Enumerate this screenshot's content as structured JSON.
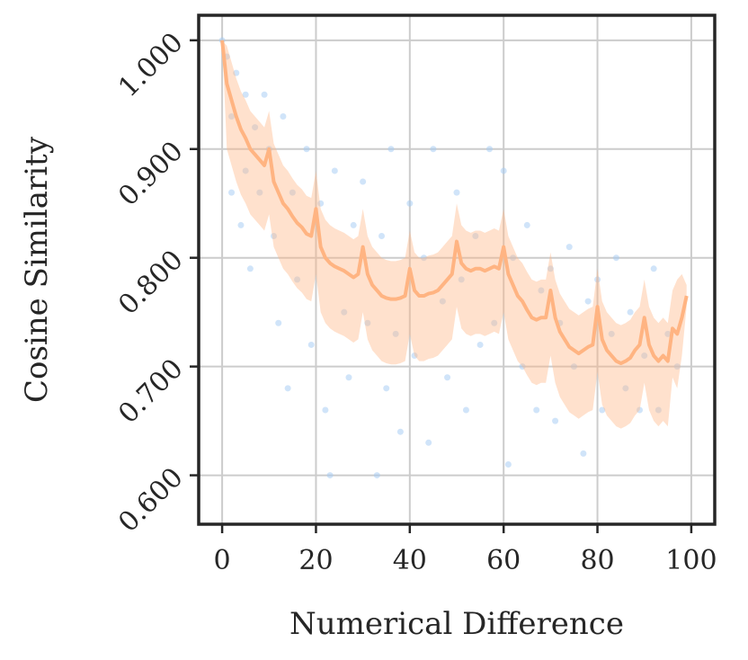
{
  "chart_data": {
    "type": "scatter",
    "xlabel": "Numerical Difference",
    "ylabel": "Cosine Similarity",
    "xlim": [
      -5,
      105
    ],
    "ylim": [
      0.555,
      1.023
    ],
    "xticks": [
      0,
      20,
      40,
      60,
      80,
      100
    ],
    "yticks": [
      {
        "value": 0.6,
        "label": "0.600"
      },
      {
        "value": 0.7,
        "label": "0.700"
      },
      {
        "value": 0.8,
        "label": "0.800"
      },
      {
        "value": 0.9,
        "label": "0.900"
      },
      {
        "value": 1.0,
        "label": "1.000"
      }
    ],
    "grid": true,
    "points": {
      "color": "#a1c9f4",
      "x": [
        0,
        1,
        2,
        2,
        3,
        4,
        5,
        5,
        6,
        7,
        8,
        9,
        10,
        11,
        12,
        13,
        14,
        15,
        16,
        18,
        19,
        21,
        22,
        23,
        24,
        26,
        27,
        28,
        30,
        31,
        33,
        34,
        35,
        36,
        37,
        38,
        40,
        41,
        43,
        44,
        45,
        47,
        48,
        50,
        51,
        52,
        54,
        55,
        57,
        58,
        60,
        61,
        62,
        64,
        65,
        67,
        68,
        70,
        71,
        72,
        74,
        75,
        77,
        78,
        80,
        81,
        83,
        84,
        86,
        87,
        89,
        90,
        92,
        93,
        95,
        97
      ],
      "y": [
        1.0,
        0.985,
        0.93,
        0.86,
        0.97,
        0.83,
        0.95,
        0.88,
        0.79,
        0.92,
        0.86,
        0.95,
        0.9,
        0.82,
        0.74,
        0.93,
        0.68,
        0.86,
        0.78,
        0.9,
        0.72,
        0.85,
        0.66,
        0.6,
        0.88,
        0.75,
        0.69,
        0.83,
        0.87,
        0.74,
        0.6,
        0.82,
        0.68,
        0.9,
        0.73,
        0.64,
        0.85,
        0.71,
        0.8,
        0.63,
        0.9,
        0.76,
        0.69,
        0.86,
        0.78,
        0.66,
        0.82,
        0.72,
        0.9,
        0.74,
        0.88,
        0.61,
        0.8,
        0.7,
        0.83,
        0.66,
        0.77,
        0.79,
        0.65,
        0.74,
        0.81,
        0.7,
        0.62,
        0.76,
        0.78,
        0.66,
        0.73,
        0.8,
        0.68,
        0.75,
        0.66,
        0.71,
        0.79,
        0.66,
        0.73,
        0.7
      ]
    },
    "x": [
      0,
      1,
      2,
      3,
      4,
      5,
      6,
      7,
      8,
      9,
      10,
      11,
      12,
      13,
      14,
      15,
      16,
      17,
      18,
      19,
      20,
      21,
      22,
      23,
      24,
      25,
      26,
      27,
      28,
      29,
      30,
      31,
      32,
      33,
      34,
      35,
      36,
      37,
      38,
      39,
      40,
      41,
      42,
      43,
      44,
      45,
      46,
      47,
      48,
      49,
      50,
      51,
      52,
      53,
      54,
      55,
      56,
      57,
      58,
      59,
      60,
      61,
      62,
      63,
      64,
      65,
      66,
      67,
      68,
      69,
      70,
      71,
      72,
      73,
      74,
      75,
      76,
      77,
      78,
      79,
      80,
      81,
      82,
      83,
      84,
      85,
      86,
      87,
      88,
      89,
      90,
      91,
      92,
      93,
      94,
      95,
      96,
      97,
      98,
      99
    ],
    "line": {
      "color": "#ffb482",
      "y": [
        1.0,
        0.96,
        0.945,
        0.93,
        0.918,
        0.91,
        0.9,
        0.895,
        0.89,
        0.885,
        0.9,
        0.87,
        0.86,
        0.85,
        0.845,
        0.838,
        0.832,
        0.828,
        0.822,
        0.82,
        0.845,
        0.81,
        0.8,
        0.795,
        0.792,
        0.79,
        0.788,
        0.785,
        0.782,
        0.785,
        0.81,
        0.785,
        0.775,
        0.77,
        0.765,
        0.763,
        0.762,
        0.762,
        0.763,
        0.765,
        0.79,
        0.77,
        0.765,
        0.765,
        0.767,
        0.768,
        0.77,
        0.775,
        0.78,
        0.785,
        0.815,
        0.795,
        0.79,
        0.788,
        0.79,
        0.79,
        0.788,
        0.79,
        0.792,
        0.79,
        0.81,
        0.785,
        0.775,
        0.765,
        0.76,
        0.752,
        0.745,
        0.743,
        0.745,
        0.745,
        0.77,
        0.745,
        0.732,
        0.725,
        0.718,
        0.715,
        0.712,
        0.715,
        0.718,
        0.72,
        0.755,
        0.725,
        0.715,
        0.71,
        0.705,
        0.703,
        0.705,
        0.708,
        0.715,
        0.72,
        0.745,
        0.72,
        0.71,
        0.705,
        0.71,
        0.705,
        0.735,
        0.73,
        0.745,
        0.765
      ],
      "upper": [
        1.0,
        0.995,
        0.98,
        0.965,
        0.953,
        0.945,
        0.935,
        0.93,
        0.925,
        0.92,
        0.935,
        0.905,
        0.895,
        0.885,
        0.88,
        0.873,
        0.867,
        0.863,
        0.857,
        0.855,
        0.88,
        0.845,
        0.835,
        0.83,
        0.827,
        0.825,
        0.823,
        0.82,
        0.817,
        0.82,
        0.845,
        0.82,
        0.81,
        0.805,
        0.8,
        0.798,
        0.797,
        0.797,
        0.798,
        0.8,
        0.825,
        0.805,
        0.8,
        0.8,
        0.802,
        0.803,
        0.805,
        0.81,
        0.815,
        0.82,
        0.85,
        0.83,
        0.825,
        0.823,
        0.825,
        0.825,
        0.823,
        0.825,
        0.827,
        0.825,
        0.845,
        0.82,
        0.81,
        0.8,
        0.795,
        0.787,
        0.78,
        0.778,
        0.78,
        0.78,
        0.805,
        0.78,
        0.767,
        0.76,
        0.753,
        0.75,
        0.747,
        0.75,
        0.753,
        0.755,
        0.79,
        0.76,
        0.75,
        0.745,
        0.74,
        0.738,
        0.74,
        0.743,
        0.75,
        0.755,
        0.78,
        0.755,
        0.745,
        0.74,
        0.745,
        0.74,
        0.77,
        0.78,
        0.785,
        0.775
      ],
      "lower": [
        1.0,
        0.9,
        0.885,
        0.87,
        0.858,
        0.85,
        0.84,
        0.835,
        0.83,
        0.825,
        0.84,
        0.81,
        0.8,
        0.79,
        0.785,
        0.778,
        0.772,
        0.768,
        0.762,
        0.76,
        0.785,
        0.75,
        0.74,
        0.735,
        0.732,
        0.73,
        0.728,
        0.725,
        0.722,
        0.725,
        0.75,
        0.725,
        0.715,
        0.71,
        0.705,
        0.703,
        0.702,
        0.702,
        0.703,
        0.705,
        0.73,
        0.71,
        0.705,
        0.705,
        0.707,
        0.708,
        0.71,
        0.715,
        0.72,
        0.725,
        0.755,
        0.735,
        0.73,
        0.728,
        0.73,
        0.73,
        0.728,
        0.73,
        0.732,
        0.73,
        0.75,
        0.725,
        0.715,
        0.705,
        0.7,
        0.692,
        0.685,
        0.683,
        0.685,
        0.685,
        0.71,
        0.685,
        0.672,
        0.665,
        0.658,
        0.655,
        0.652,
        0.655,
        0.658,
        0.66,
        0.695,
        0.665,
        0.655,
        0.65,
        0.645,
        0.643,
        0.645,
        0.648,
        0.655,
        0.66,
        0.685,
        0.66,
        0.65,
        0.645,
        0.65,
        0.645,
        0.69,
        0.68,
        0.71,
        0.755
      ]
    }
  }
}
